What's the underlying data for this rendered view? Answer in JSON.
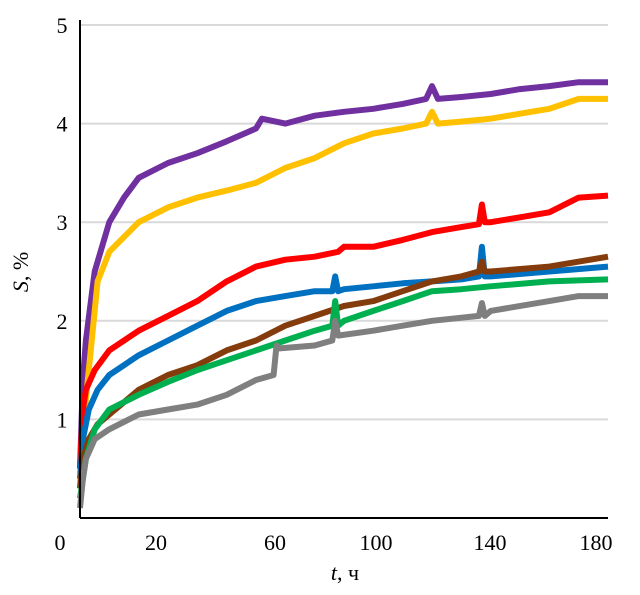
{
  "chart_data": {
    "type": "line",
    "title": "",
    "xlabel_italic": "t",
    "xlabel_unit": ", ч",
    "ylabel_italic": "S",
    "ylabel_unit": ", %",
    "xlim": [
      0,
      180
    ],
    "ylim": [
      0,
      5
    ],
    "x_tick_labels": [
      "0",
      "20",
      "60",
      "100",
      "140",
      "180"
    ],
    "y_ticks": [
      1,
      2,
      3,
      4,
      5
    ],
    "y_tick_labels": [
      "1",
      "2",
      "3",
      "4",
      "5"
    ],
    "grid": "horizontal",
    "series": [
      {
        "name": "purple",
        "color": "#7030A0",
        "x": [
          0,
          1,
          2,
          5,
          10,
          15,
          20,
          30,
          40,
          50,
          60,
          62,
          70,
          80,
          90,
          100,
          110,
          118,
          120,
          122,
          130,
          140,
          150,
          160,
          170,
          180
        ],
        "y": [
          0.5,
          1.4,
          1.8,
          2.5,
          3.0,
          3.25,
          3.45,
          3.6,
          3.7,
          3.82,
          3.95,
          4.05,
          4.0,
          4.08,
          4.12,
          4.15,
          4.2,
          4.25,
          4.38,
          4.25,
          4.27,
          4.3,
          4.35,
          4.38,
          4.42,
          4.42
        ]
      },
      {
        "name": "yellow",
        "color": "#FFC000",
        "x": [
          0,
          1,
          3,
          6,
          10,
          15,
          20,
          30,
          40,
          50,
          60,
          70,
          80,
          90,
          100,
          110,
          118,
          120,
          122,
          130,
          140,
          150,
          160,
          165,
          170,
          180
        ],
        "y": [
          0.3,
          0.9,
          1.5,
          2.4,
          2.7,
          2.85,
          3.0,
          3.15,
          3.25,
          3.32,
          3.4,
          3.55,
          3.65,
          3.8,
          3.9,
          3.95,
          4.0,
          4.12,
          4.0,
          4.02,
          4.05,
          4.1,
          4.15,
          4.2,
          4.25,
          4.25
        ]
      },
      {
        "name": "red",
        "color": "#FF0000",
        "x": [
          0,
          1,
          2,
          5,
          10,
          20,
          30,
          40,
          50,
          60,
          70,
          80,
          88,
          90,
          100,
          110,
          120,
          130,
          136,
          137,
          138,
          140,
          150,
          160,
          170,
          180
        ],
        "y": [
          0.5,
          1.1,
          1.3,
          1.5,
          1.7,
          1.9,
          2.05,
          2.2,
          2.4,
          2.55,
          2.62,
          2.65,
          2.7,
          2.75,
          2.75,
          2.82,
          2.9,
          2.95,
          2.98,
          3.18,
          3.0,
          3.0,
          3.05,
          3.1,
          3.25,
          3.27
        ]
      },
      {
        "name": "blue",
        "color": "#0070C0",
        "x": [
          0,
          1,
          3,
          6,
          10,
          20,
          30,
          40,
          50,
          60,
          70,
          80,
          86,
          87,
          88,
          90,
          100,
          110,
          120,
          130,
          136,
          137,
          138,
          140,
          160,
          180
        ],
        "y": [
          0.4,
          0.8,
          1.1,
          1.3,
          1.45,
          1.65,
          1.8,
          1.95,
          2.1,
          2.2,
          2.25,
          2.3,
          2.3,
          2.45,
          2.3,
          2.32,
          2.35,
          2.38,
          2.4,
          2.42,
          2.45,
          2.75,
          2.45,
          2.45,
          2.5,
          2.55
        ]
      },
      {
        "name": "brown",
        "color": "#843C0C",
        "x": [
          0,
          1,
          3,
          6,
          10,
          20,
          30,
          40,
          50,
          60,
          70,
          80,
          90,
          100,
          110,
          120,
          130,
          136,
          137,
          138,
          140,
          160,
          180
        ],
        "y": [
          0.3,
          0.6,
          0.8,
          0.95,
          1.05,
          1.3,
          1.45,
          1.55,
          1.7,
          1.8,
          1.95,
          2.05,
          2.15,
          2.2,
          2.3,
          2.4,
          2.45,
          2.5,
          2.6,
          2.5,
          2.5,
          2.55,
          2.65
        ]
      },
      {
        "name": "green",
        "color": "#00B050",
        "x": [
          0,
          2,
          5,
          10,
          20,
          30,
          40,
          50,
          60,
          70,
          80,
          86,
          87,
          88,
          90,
          100,
          110,
          120,
          130,
          140,
          160,
          180
        ],
        "y": [
          0.2,
          0.6,
          0.9,
          1.1,
          1.25,
          1.38,
          1.5,
          1.6,
          1.7,
          1.8,
          1.9,
          1.95,
          2.2,
          1.95,
          2.0,
          2.1,
          2.2,
          2.3,
          2.32,
          2.35,
          2.4,
          2.42
        ]
      },
      {
        "name": "gray",
        "color": "#7F7F7F",
        "x": [
          0,
          1,
          2,
          5,
          10,
          20,
          30,
          40,
          50,
          60,
          66,
          67,
          68,
          80,
          86,
          87,
          88,
          100,
          110,
          120,
          136,
          137,
          138,
          140,
          160,
          170,
          180
        ],
        "y": [
          0.1,
          0.4,
          0.6,
          0.8,
          0.9,
          1.05,
          1.1,
          1.15,
          1.25,
          1.4,
          1.45,
          1.75,
          1.72,
          1.75,
          1.8,
          2.0,
          1.85,
          1.9,
          1.95,
          2.0,
          2.05,
          2.18,
          2.05,
          2.1,
          2.2,
          2.25,
          2.25
        ]
      }
    ]
  }
}
